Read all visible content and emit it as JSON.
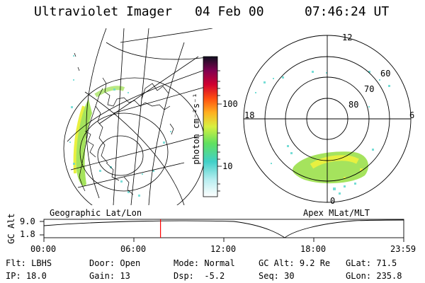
{
  "header": {
    "instrument": "Ultraviolet Imager",
    "date": "04 Feb 00",
    "time": "07:46:24 UT"
  },
  "panels": {
    "left_label": "Geographic Lat/Lon",
    "right_label": "Apex MLat/MLT"
  },
  "colorbar": {
    "label": "photon cm⁻²s⁻¹",
    "ticks": [
      "100",
      "10"
    ]
  },
  "polar": {
    "mlt_labels": {
      "top": "12",
      "left": "18",
      "right": "6",
      "bottom": "0"
    },
    "lat_labels": [
      "60",
      "70",
      "80"
    ]
  },
  "timeline": {
    "axis_label": "GC Alt",
    "y_ticks": [
      "9.0",
      "1.8"
    ],
    "x_ticks": [
      "00:00",
      "06:00",
      "12:00",
      "18:00",
      "23:59"
    ],
    "current_fraction": 0.324
  },
  "status": {
    "row1": [
      {
        "label": "Flt:",
        "value": "LBHS"
      },
      {
        "label": "Door:",
        "value": "Open"
      },
      {
        "label": "Mode:",
        "value": "Normal"
      },
      {
        "label": "GC Alt:",
        "value": "9.2 Re"
      },
      {
        "label": "GLat:",
        "value": "71.5"
      }
    ],
    "row2": [
      {
        "label": "IP:",
        "value": "18.0"
      },
      {
        "label": "Gain:",
        "value": "13"
      },
      {
        "label": "Dsp:",
        "value": "-5.2"
      },
      {
        "label": "Seq:",
        "value": "30"
      },
      {
        "label": "GLon:",
        "value": "235.8"
      }
    ]
  },
  "colors": {
    "aurora_green": "#9be04b",
    "aurora_cyan": "#5fd8d0",
    "aurora_yellow": "#e8f040",
    "marker_red": "#ff0000"
  }
}
